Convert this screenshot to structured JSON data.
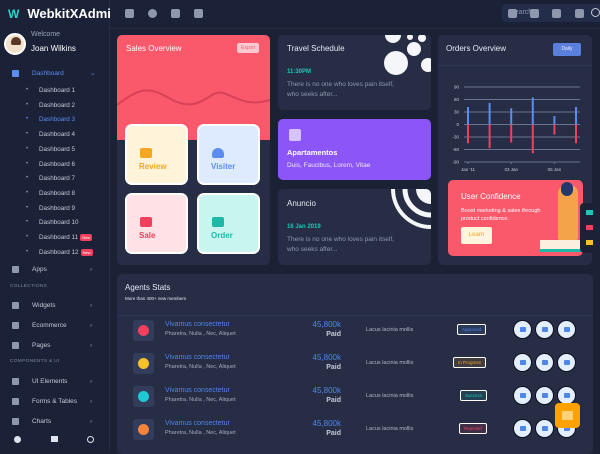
{
  "app": {
    "title": "WebkitXAdmin"
  },
  "user": {
    "welcome": "Welcome",
    "name": "Joan Wilkins"
  },
  "sidebar": {
    "dashboard": "Dashboard",
    "dashboards": [
      "Dashboard 1",
      "Dashboard 2",
      "Dashboard 3",
      "Dashboard 4",
      "Dashboard 5",
      "Dashboard 6",
      "Dashboard 7",
      "Dashboard 8",
      "Dashboard 9",
      "Dashboard 10",
      "Dashboard 11",
      "Dashboard 12"
    ],
    "active": "Dashboard 3",
    "new_badge": "New",
    "apps": "Apps",
    "section_collections": "COLLECTIONS",
    "collections": [
      "Widgets",
      "Ecommerce",
      "Pages"
    ],
    "section_components": "COMPONENTS & UI",
    "components": [
      "UI Elements",
      "Forms & Tables",
      "Charts"
    ]
  },
  "topbar": {
    "search_placeholder": "Search"
  },
  "sales": {
    "title": "Sales Overview",
    "export": "Export",
    "tiles": [
      "Review",
      "Visiter",
      "Sale",
      "Order"
    ]
  },
  "travel": {
    "title": "Travel Schedule",
    "time": "11:30PM",
    "text": "There is no one who loves pain itself, who seeks after..."
  },
  "apartamentos": {
    "title": "Apartamentos",
    "text": "Duis, Faucibus, Lorem, Vitae"
  },
  "anuncio": {
    "title": "Anuncio",
    "date": "16 Jan 2019",
    "text": "There is no one who loves pain itself, who seeks after..."
  },
  "orders": {
    "title": "Orders Overview",
    "button": "Daily"
  },
  "chart_data": {
    "type": "bar",
    "yticks": [
      90,
      60,
      30,
      0,
      -30,
      -60,
      -90
    ],
    "ylim": [
      -90,
      90
    ],
    "xticks": [
      "Jan '11",
      "03 Jan",
      "05 Jan"
    ],
    "grid": true,
    "series": [
      {
        "values": [
          42,
          52,
          39,
          65,
          20,
          42
        ],
        "color": "#5b8cf0"
      },
      {
        "values": [
          -45,
          -57,
          -43,
          -69,
          -24,
          -45
        ],
        "color": "#f0405d"
      }
    ]
  },
  "confidence": {
    "title": "User Confidence",
    "text": "Boost marketing & sales through product confidence.",
    "button": "Learn"
  },
  "agents": {
    "title": "Agents Stats",
    "subtitle": "More than 400+ new members",
    "rows": [
      {
        "name": "Vivamus consectetur",
        "tags": "Pharetra, Nulla , Nec, Aliquet",
        "amount": "45,800k",
        "paid": "Paid",
        "note": "Lacus lacinia mollis",
        "status": "Approved",
        "status_color": "#4f86e8",
        "icon_color": "#f0405d"
      },
      {
        "name": "Vivamus consectetur",
        "tags": "Pharetra, Nulla , Nec, Aliquet",
        "amount": "45,800k",
        "paid": "Paid",
        "note": "Lacus lacinia mollis",
        "status": "In Progress",
        "status_color": "#f5a623",
        "icon_color": "#f5c02a"
      },
      {
        "name": "Vivamus consectetur",
        "tags": "Pharetra, Nulla , Nec, Aliquet",
        "amount": "45,800k",
        "paid": "Paid",
        "note": "Lacus lacinia mollis",
        "status": "Success",
        "status_color": "#1fc8b5",
        "icon_color": "#1fc8d5"
      },
      {
        "name": "Vivamus consectetur",
        "tags": "Pharetra, Nulla , Nec, Aliquet",
        "amount": "45,800k",
        "paid": "Paid",
        "note": "Lacus lacinia mollis",
        "status": "Rejected",
        "status_color": "#f0405d",
        "icon_color": "#f5853a"
      }
    ]
  },
  "colors": {
    "accent": "#5b8cf0",
    "red": "#f9596b",
    "purple": "#8b55f7",
    "orange": "#ffa200"
  }
}
